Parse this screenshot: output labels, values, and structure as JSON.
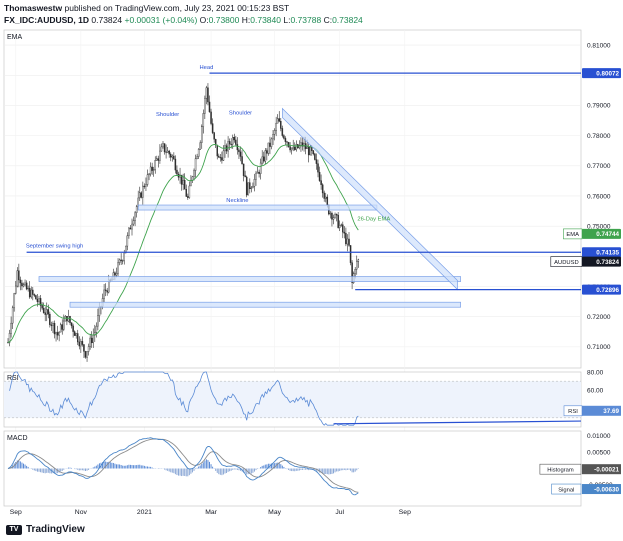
{
  "header": {
    "publisher": "Thomaswestw",
    "published_text": "published on TradingView.com, July 23, 2021 00:15:23 BST",
    "symbol": "FX_IDC:AUDUSD, 1D",
    "last": "0.73824",
    "change": "+0.00031 (+0.04%)",
    "o_label": "O:",
    "o": "0.73800",
    "h_label": "H:",
    "h": "0.73840",
    "l_label": "L:",
    "l": "0.73788",
    "c_label": "C:",
    "c": "0.73824"
  },
  "colors": {
    "up": "#2c2c2c",
    "down": "#2c2c2c",
    "ema": "#3fa34d",
    "blue_line": "#2850d2",
    "zone_fill": "#cfe0fb",
    "zone_stroke": "#7aa0e8",
    "rsi": "#5b8bd6",
    "macd": "#4a86c8",
    "signal": "#8c8c8c",
    "hist": "#5b8bd6"
  },
  "footer": {
    "logo_text": "TradingView"
  },
  "chart_data": {
    "type": "candlestick",
    "main_pane": {
      "indicator_label": "EMA",
      "y_range": [
        0.703,
        0.815
      ],
      "y_ticks": [
        "0.81000",
        "0.80000",
        "0.79000",
        "0.78000",
        "0.77000",
        "0.76000",
        "0.75000",
        "0.74000",
        "0.73000",
        "0.72000",
        "0.71000"
      ],
      "x_labels": [
        "Sep",
        "Nov",
        "2021",
        "Mar",
        "May",
        "Jul",
        "Sep"
      ],
      "x_label_index": [
        5,
        47,
        88,
        131,
        172,
        214,
        256
      ],
      "price_badges": [
        {
          "label": "",
          "value": "0.80072",
          "y": 0.80072,
          "style": "blue"
        },
        {
          "label": "EMA",
          "value": "0.74744",
          "y": 0.74744,
          "style": "green"
        },
        {
          "label": "",
          "value": "0.74135",
          "y": 0.74135,
          "style": "blue"
        },
        {
          "label": "AUDUSD",
          "value": "0.73824",
          "y": 0.73824,
          "style": "dark"
        },
        {
          "label": "",
          "value": "0.72896",
          "y": 0.72896,
          "style": "blue"
        }
      ],
      "annotations": [
        {
          "text": "Head",
          "i": 128,
          "y": 0.802
        },
        {
          "text": "Shoulder",
          "i": 103,
          "y": 0.7865
        },
        {
          "text": "Shoulder",
          "i": 150,
          "y": 0.787
        },
        {
          "text": "Neckline",
          "i": 148,
          "y": 0.758
        },
        {
          "text": "September swing high",
          "i": 30,
          "y": 0.743
        },
        {
          "text": "26-Day EMA",
          "i": 236,
          "y": 0.7518
        }
      ],
      "horizontal_lines": [
        {
          "from_i": 130,
          "y": 0.80072
        },
        {
          "from_i": 12,
          "y": 0.74135
        },
        {
          "from_i": 224,
          "y": 0.72896
        }
      ],
      "zones": [
        {
          "from_i": 84,
          "to_i": 238,
          "y1": 0.7555,
          "y2": 0.757
        },
        {
          "from_i": 20,
          "to_i": 292,
          "y1": 0.7318,
          "y2": 0.7333
        },
        {
          "from_i": 40,
          "to_i": 292,
          "y1": 0.7233,
          "y2": 0.7248
        }
      ],
      "trend_channel": {
        "i1": 177,
        "y1a": 0.789,
        "y1b": 0.786,
        "i2": 290,
        "y2a": 0.732,
        "y2b": 0.729
      }
    },
    "rsi_pane": {
      "label": "RSI",
      "value_label": "RSI",
      "value": "37.69",
      "y_range": [
        20,
        80
      ],
      "y_ticks": [
        "80.00",
        "60.00",
        "40.00"
      ],
      "band": [
        30,
        70
      ]
    },
    "macd_pane": {
      "label": "MACD",
      "y_range": [
        -0.0115,
        0.0115
      ],
      "y_ticks": [
        "0.01000",
        "0.00500",
        "0.00000",
        "-0.00500"
      ],
      "badges": [
        {
          "label": "Histogram",
          "value": "-0.00021"
        },
        {
          "label": "Signal",
          "value": "-0.00630"
        }
      ]
    }
  }
}
